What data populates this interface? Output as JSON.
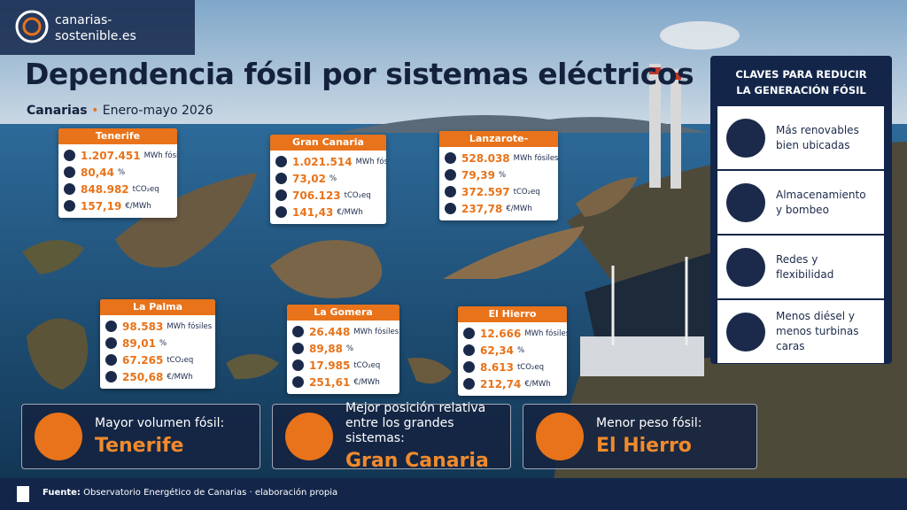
{
  "logo": {
    "line1": "canarias-",
    "line2": "sostenible.es"
  },
  "header": {
    "title": "Dependencia fósil por sistemas eléctricos",
    "region": "Canarias",
    "separator": "•",
    "period": "Enero-mayo 2026"
  },
  "islands": [
    {
      "name": "Tenerife",
      "stats": [
        {
          "value": "1.207.451",
          "unit": "MWh fósiles"
        },
        {
          "value": "80,44",
          "unit": "%"
        },
        {
          "value": "848.982",
          "unit": "tCO₂eq"
        },
        {
          "value": "157,19",
          "unit": "€/MWh"
        }
      ]
    },
    {
      "name": "Gran Canaria",
      "stats": [
        {
          "value": "1.021.514",
          "unit": "MWh fósiles"
        },
        {
          "value": "73,02",
          "unit": "%"
        },
        {
          "value": "706.123",
          "unit": "tCO₂eq"
        },
        {
          "value": "141,43",
          "unit": "€/MWh"
        }
      ]
    },
    {
      "name": "Lanzarote-Fuerteventura",
      "stats": [
        {
          "value": "528.038",
          "unit": "MWh fósiles"
        },
        {
          "value": "79,39",
          "unit": "%"
        },
        {
          "value": "372.597",
          "unit": "tCO₂eq"
        },
        {
          "value": "237,78",
          "unit": "€/MWh"
        }
      ]
    },
    {
      "name": "La Palma",
      "stats": [
        {
          "value": "98.583",
          "unit": "MWh fósiles"
        },
        {
          "value": "89,01",
          "unit": "%"
        },
        {
          "value": "67.265",
          "unit": "tCO₂eq"
        },
        {
          "value": "250,68",
          "unit": "€/MWh"
        }
      ]
    },
    {
      "name": "La Gomera",
      "stats": [
        {
          "value": "26.448",
          "unit": "MWh fósiles"
        },
        {
          "value": "89,88",
          "unit": "%"
        },
        {
          "value": "17.985",
          "unit": "tCO₂eq"
        },
        {
          "value": "251,61",
          "unit": "€/MWh"
        }
      ]
    },
    {
      "name": "El Hierro",
      "stats": [
        {
          "value": "12.666",
          "unit": "MWh fósiles"
        },
        {
          "value": "62,34",
          "unit": "%"
        },
        {
          "value": "8.613",
          "unit": "tCO₂eq"
        },
        {
          "value": "212,74",
          "unit": "€/MWh"
        }
      ]
    }
  ],
  "keys": {
    "title": [
      "CLAVES PARA REDUCIR",
      "LA GENERACIÓN FÓSIL"
    ],
    "items": [
      {
        "lines": [
          "Más renovables",
          "bien ubicadas"
        ]
      },
      {
        "lines": [
          "Almacenamiento",
          "y bombeo"
        ]
      },
      {
        "lines": [
          "Redes y",
          "flexibilidad"
        ]
      },
      {
        "lines": [
          "Menos diésel y",
          "menos turbinas caras"
        ]
      }
    ]
  },
  "highlights": [
    {
      "label": [
        "Mayor volumen fósil:"
      ],
      "value": "Tenerife"
    },
    {
      "label": [
        "Mejor posición relativa",
        "entre los grandes sistemas:"
      ],
      "value": "Gran Canaria"
    },
    {
      "label": [
        "Menor peso fósil:"
      ],
      "value": "El Hierro"
    }
  ],
  "footer": {
    "source_label": "Fuente:",
    "source": "Observatorio Energético de Canarias · elaboración propia"
  }
}
